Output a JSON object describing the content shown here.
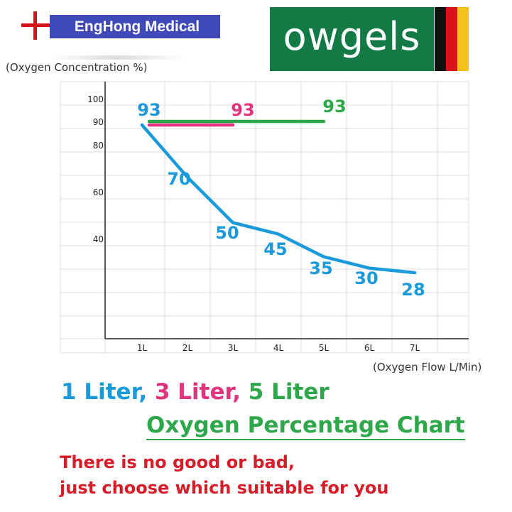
{
  "brand": {
    "name": "EngHong Medical",
    "logo_text": "owgels"
  },
  "colors": {
    "brand_box": "#3f4ab8",
    "cross": "#d8141b",
    "logo_bg": "#137a46",
    "flag": [
      "#111111",
      "#d8141b",
      "#f2c11a"
    ],
    "one_liter": "#1a9ad9",
    "three_liter": "#e0347e",
    "five_liter": "#2ea64a",
    "note": "#d81d2a"
  },
  "chart_data": {
    "type": "line",
    "ylabel": "(Oxygen Concentration %)",
    "xlabel": "(Oxygen Flow L/Min)",
    "categories": [
      "1L",
      "2L",
      "3L",
      "4L",
      "5L",
      "6L",
      "7L"
    ],
    "y_ticks": [
      100,
      90,
      80,
      60,
      40
    ],
    "ylim": [
      0,
      110
    ],
    "grid": true,
    "series": [
      {
        "color": "#1a9ad9",
        "x": [
          1,
          2,
          3,
          4,
          5,
          6,
          7
        ],
        "values": [
          93,
          70,
          50,
          45,
          35,
          30,
          28
        ],
        "labels": [
          "93",
          "70",
          "50",
          "45",
          "35",
          "30",
          "28"
        ]
      },
      {
        "color": "#e0347e",
        "x": [
          1,
          3
        ],
        "values": [
          93,
          93
        ],
        "labels": [
          "93"
        ]
      },
      {
        "color": "#2ea64a",
        "x": [
          1,
          5
        ],
        "values": [
          93,
          93
        ],
        "labels": [
          "93"
        ]
      }
    ]
  },
  "headline": {
    "part1": "1 Liter,",
    "part2": "3 Liter,",
    "part3": "5 Liter"
  },
  "subheadline": "Oxygen Percentage Chart",
  "note": {
    "line1": "There is no good or bad,",
    "line2": "just choose which suitable for you"
  }
}
